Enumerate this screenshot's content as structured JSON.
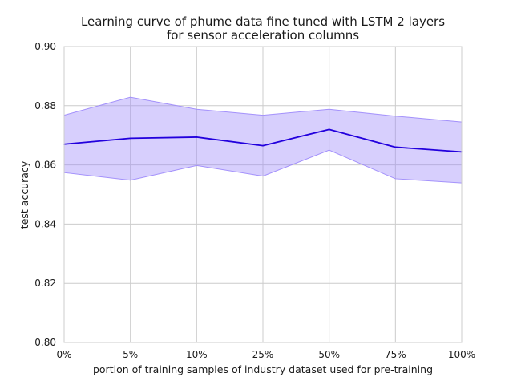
{
  "chart_data": {
    "type": "line",
    "title_line1": "Learning curve of phume data fine tuned with LSTM 2 layers",
    "title_line2": "for sensor acceleration columns",
    "xlabel": "portion of training samples of industry dataset used for pre-training",
    "ylabel": "test accuracy",
    "categories": [
      "0%",
      "5%",
      "10%",
      "25%",
      "50%",
      "75%",
      "100%"
    ],
    "ylim": [
      0.8,
      0.9
    ],
    "yticks": [
      "0.80",
      "0.82",
      "0.84",
      "0.86",
      "0.88",
      "0.90"
    ],
    "grid": true,
    "series": [
      {
        "values": [
          0.867,
          0.869,
          0.8694,
          0.8665,
          0.872,
          0.866,
          0.8644
        ],
        "upper": [
          0.8768,
          0.8829,
          0.8788,
          0.8768,
          0.8788,
          0.8765,
          0.8745
        ],
        "lower": [
          0.8574,
          0.8548,
          0.8598,
          0.8562,
          0.865,
          0.8553,
          0.8539
        ]
      }
    ],
    "colors": {
      "line": "#2200dd",
      "band": "#9b87fb",
      "band_opacity": 0.4
    }
  }
}
